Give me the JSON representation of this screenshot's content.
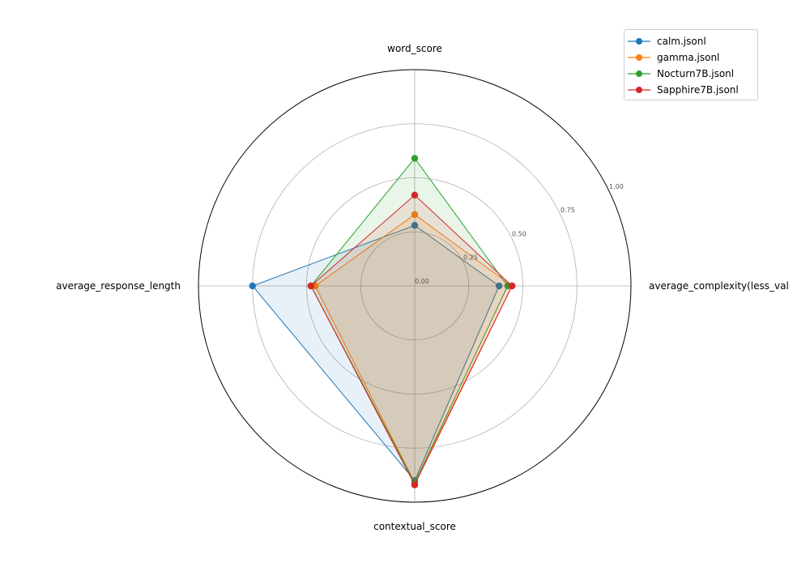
{
  "chart_data": {
    "type": "radar",
    "axes": [
      "word_score",
      "average_complexity(less_val",
      "contextual_score",
      "average_response_length"
    ],
    "rlim": [
      0,
      1
    ],
    "r_ticks": [
      "0.00",
      "0.25",
      "0.50",
      "0.75",
      "1.00"
    ],
    "r_tick_values": [
      0,
      0.25,
      0.5,
      0.75,
      1.0
    ],
    "grid": true,
    "legend_position": "top-right",
    "series": [
      {
        "name": "calm.jsonl",
        "color": "#1f77b4",
        "values": [
          0.28,
          0.39,
          0.9,
          0.75
        ]
      },
      {
        "name": "gamma.jsonl",
        "color": "#ff7f0e",
        "values": [
          0.33,
          0.45,
          0.91,
          0.46
        ]
      },
      {
        "name": "Nocturn7B.jsonl",
        "color": "#2ca02c",
        "values": [
          0.59,
          0.43,
          0.91,
          0.48
        ]
      },
      {
        "name": "Sapphire7B.jsonl",
        "color": "#d62728",
        "values": [
          0.42,
          0.45,
          0.92,
          0.48
        ]
      }
    ]
  }
}
